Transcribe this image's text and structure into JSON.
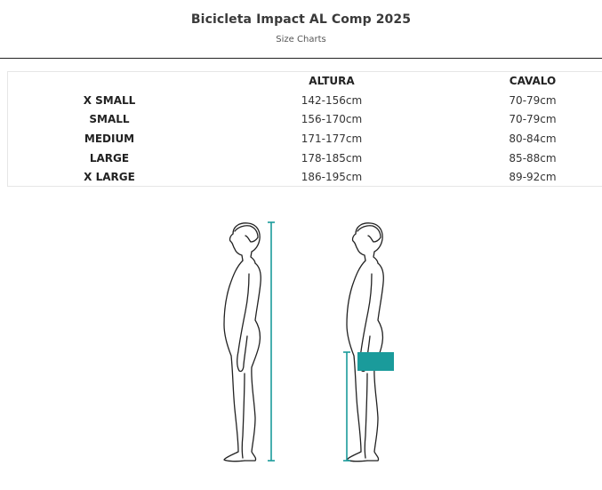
{
  "page": {
    "title": "Bicicleta Impact AL Comp 2025",
    "subtitle": "Size Charts"
  },
  "table": {
    "headers": [
      "",
      "ALTURA",
      "CAVALO"
    ],
    "rows": [
      {
        "size": "X SMALL",
        "altura": "142-156cm",
        "cavalo": "70-79cm"
      },
      {
        "size": "SMALL",
        "altura": "156-170cm",
        "cavalo": "70-79cm"
      },
      {
        "size": "MEDIUM",
        "altura": "171-177cm",
        "cavalo": "80-84cm"
      },
      {
        "size": "LARGE",
        "altura": "178-185cm",
        "cavalo": "85-88cm"
      },
      {
        "size": "X LARGE",
        "altura": "186-195cm",
        "cavalo": "89-92cm"
      }
    ]
  },
  "colors": {
    "accent": "#1a9b9b",
    "outline": "#222222",
    "text": "#2b2b2b"
  },
  "illustration": {
    "figures": [
      "height-measure-figure",
      "inseam-measure-figure"
    ]
  }
}
